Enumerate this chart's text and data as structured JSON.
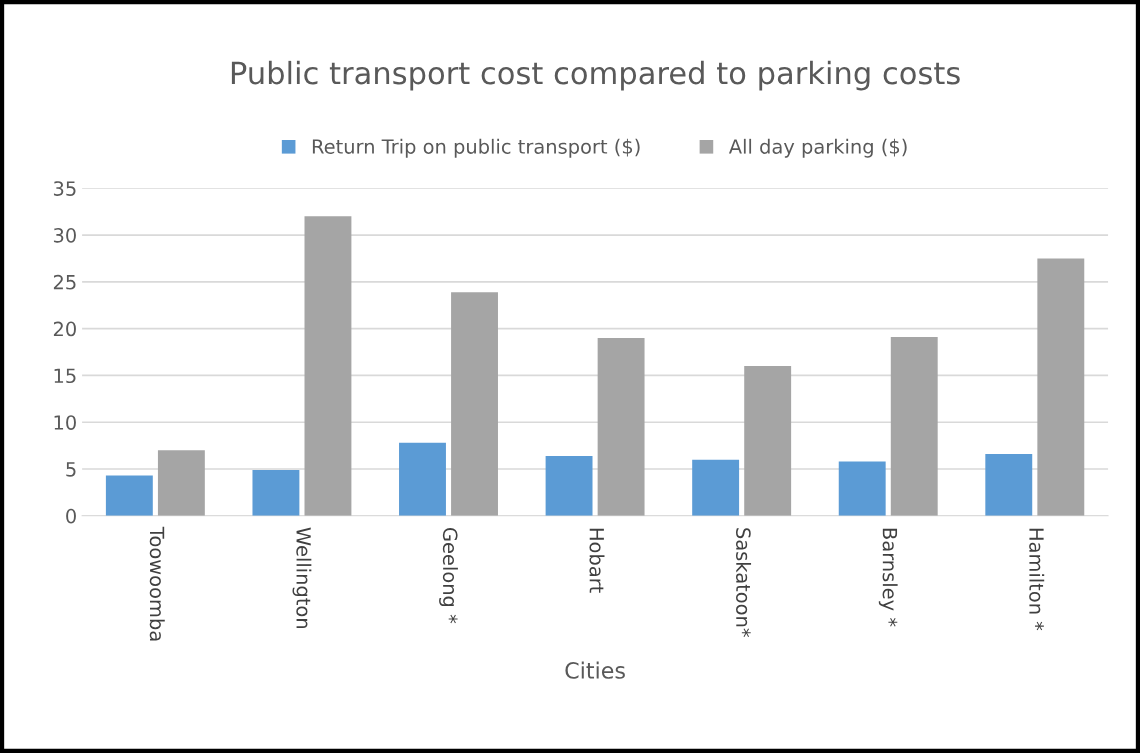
{
  "chart_data": {
    "type": "bar",
    "title": "Public transport cost compared to parking costs",
    "xlabel": "Cities",
    "categories": [
      "Toowoomba",
      "Wellington",
      "Geelong *",
      "Hobart",
      "Saskatoon*",
      "Barnsley *",
      "Hamilton *"
    ],
    "series": [
      {
        "name": "Return Trip on public transport ($)",
        "color": "#5b9bd5",
        "values": [
          4.3,
          4.9,
          7.8,
          6.4,
          6.0,
          5.8,
          6.6
        ]
      },
      {
        "name": "All day parking ($)",
        "color": "#a5a5a5",
        "values": [
          7.0,
          32.0,
          23.9,
          19.0,
          16.0,
          19.1,
          27.5
        ]
      }
    ],
    "ylim": [
      0,
      35
    ],
    "yticks": [
      0,
      5,
      10,
      15,
      20,
      25,
      30,
      35
    ],
    "grid": "y",
    "legend": "top"
  }
}
